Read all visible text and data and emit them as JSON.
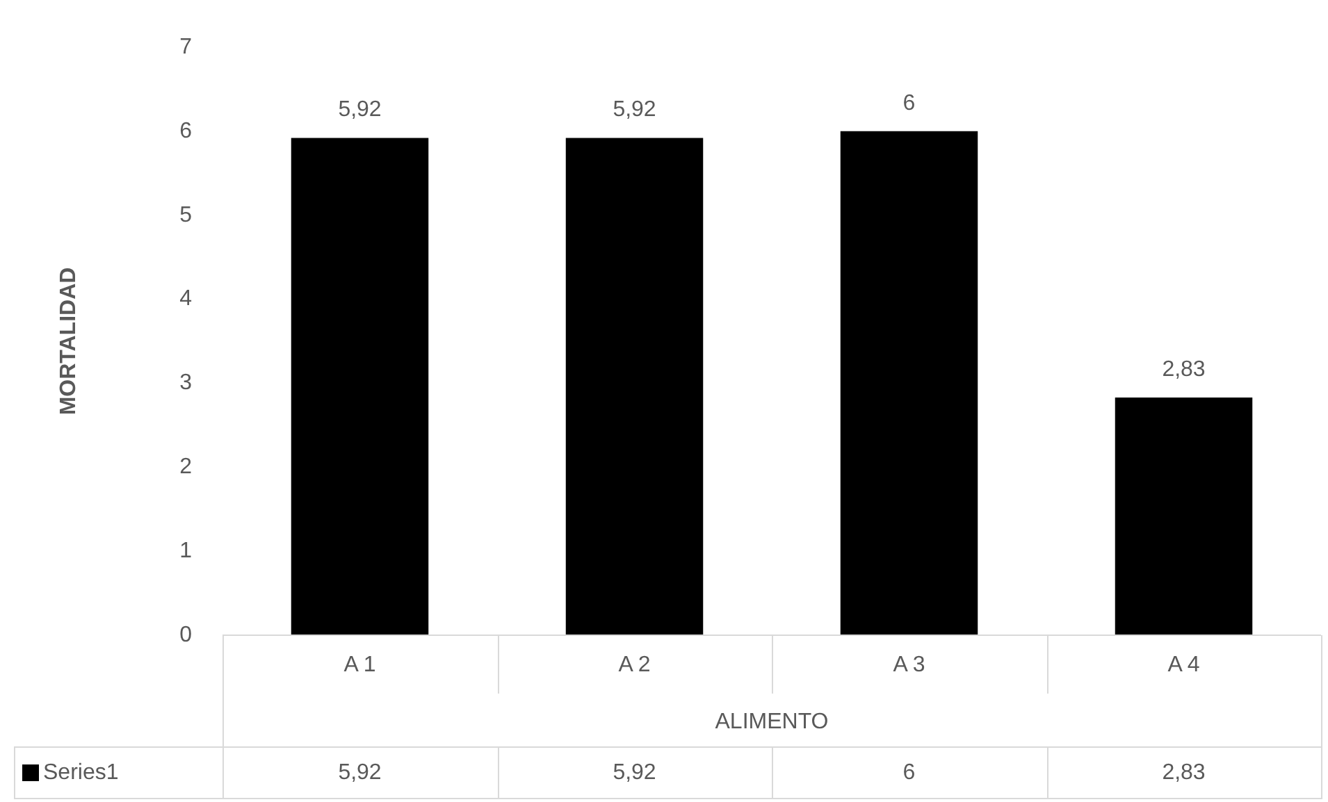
{
  "chart_data": {
    "type": "bar",
    "xlabel": "ALIMENTO",
    "ylabel": "MORTALIDAD",
    "categories": [
      "A 1",
      "A 2",
      "A 3",
      "A 4"
    ],
    "series": [
      {
        "name": "Series1",
        "color": "#000000",
        "values": [
          5.92,
          5.92,
          6,
          2.83
        ],
        "value_labels": [
          "5,92",
          "5,92",
          "6",
          "2,83"
        ]
      }
    ],
    "ylim": [
      0,
      7
    ],
    "yticks": [
      0,
      1,
      2,
      3,
      4,
      5,
      6,
      7
    ],
    "grid": false,
    "legend": "bottom"
  }
}
